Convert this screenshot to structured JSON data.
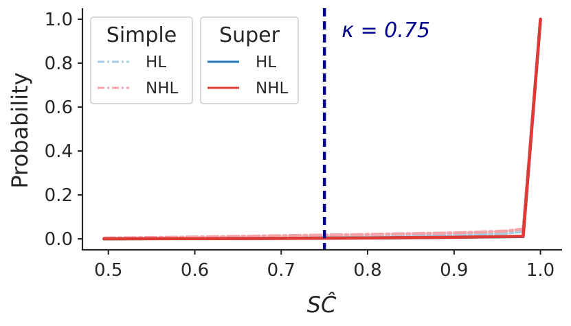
{
  "chart_data": {
    "type": "line",
    "xlabel": "SĈ",
    "ylabel": "Probability",
    "xlim": [
      0.47,
      1.025
    ],
    "ylim": [
      -0.05,
      1.05
    ],
    "xticks": [
      "0.5",
      "0.6",
      "0.7",
      "0.8",
      "0.9",
      "1.0"
    ],
    "yticks": [
      "0.0",
      "0.2",
      "0.4",
      "0.6",
      "0.8",
      "1.0"
    ],
    "grid": false,
    "vline": {
      "x": 0.75,
      "color": "#00008b"
    },
    "annotation": {
      "text": "κ = 0.75",
      "x": 0.77,
      "y": 0.95,
      "color": "#00008b"
    },
    "legends": [
      {
        "title": "Simple",
        "entries": [
          {
            "label": "HL",
            "color": "#a6cee3",
            "style": "dashdot"
          },
          {
            "label": "NHL",
            "color": "#f4a3a8",
            "style": "dashdot"
          }
        ]
      },
      {
        "title": "Super",
        "entries": [
          {
            "label": "HL",
            "color": "#1f78b4",
            "style": "solid"
          },
          {
            "label": "NHL",
            "color": "#e03a34",
            "style": "solid"
          }
        ]
      }
    ],
    "series": [
      {
        "group": "Simple",
        "name": "HL",
        "color": "#a6cee3",
        "style": "dashdot",
        "x": [
          0.495,
          0.6,
          0.7,
          0.8,
          0.9,
          0.96,
          0.98,
          1.0
        ],
        "y": [
          0.002,
          0.005,
          0.008,
          0.012,
          0.018,
          0.025,
          0.035,
          1.0
        ]
      },
      {
        "group": "Simple",
        "name": "NHL",
        "color": "#f4a3a8",
        "style": "dashdot",
        "x": [
          0.495,
          0.6,
          0.7,
          0.8,
          0.9,
          0.96,
          0.98,
          1.0
        ],
        "y": [
          0.003,
          0.008,
          0.014,
          0.02,
          0.027,
          0.035,
          0.045,
          1.0
        ]
      },
      {
        "group": "Super",
        "name": "HL",
        "color": "#1f78b4",
        "style": "solid",
        "x": [
          0.495,
          0.6,
          0.7,
          0.8,
          0.9,
          0.98,
          1.0
        ],
        "y": [
          0.0,
          0.001,
          0.002,
          0.004,
          0.007,
          0.01,
          1.0
        ]
      },
      {
        "group": "Super",
        "name": "NHL",
        "color": "#e03a34",
        "style": "solid",
        "x": [
          0.495,
          0.6,
          0.7,
          0.8,
          0.9,
          0.98,
          1.0
        ],
        "y": [
          0.0,
          0.001,
          0.002,
          0.004,
          0.007,
          0.012,
          1.0
        ]
      }
    ]
  }
}
